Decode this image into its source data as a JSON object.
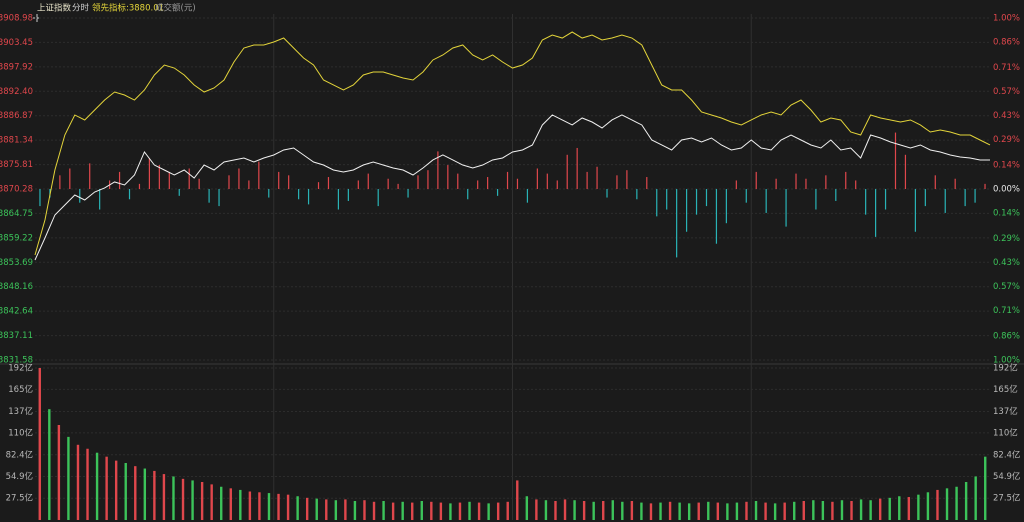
{
  "chart_data": [
    {
      "type": "line",
      "header": [
        "上证指数",
        "分时",
        "领先指标:3880.01",
        "成交额(元)"
      ],
      "header_colors": [
        "#e6e2c8",
        "#d0d0d0",
        "#e3d43a",
        "#9a9a9a"
      ],
      "ylim": [
        3831.58,
        3908.98
      ],
      "yticks": [
        3908.98,
        3903.45,
        3897.92,
        {
          "value": 3892.4,
          "label": "3892.40"
        },
        3886.87,
        3881.34,
        3875.81,
        3870.28,
        3864.75,
        3859.22,
        3853.69,
        3848.16,
        3842.64,
        3837.11,
        3831.58
      ],
      "y2lim": [
        -1.0,
        1.0
      ],
      "y2ticks": [
        {
          "value": 1.0,
          "label": "1.00%"
        },
        {
          "value": 0.86,
          "label": "0.86%"
        },
        {
          "value": 0.71,
          "label": "0.71%"
        },
        {
          "value": 0.57,
          "label": "0.57%"
        },
        {
          "value": 0.43,
          "label": "0.43%"
        },
        {
          "value": 0.29,
          "label": "0.29%"
        },
        {
          "value": 0.14,
          "label": "0.14%"
        },
        {
          "value": 0.0,
          "label": "0.00%"
        },
        {
          "value": -0.14,
          "label": "0.14%"
        },
        {
          "value": -0.29,
          "label": "0.29%"
        },
        {
          "value": -0.43,
          "label": "0.43%"
        },
        {
          "value": -0.57,
          "label": "0.57%"
        },
        {
          "value": -0.71,
          "label": "0.71%"
        },
        {
          "value": -0.86,
          "label": "0.86%"
        },
        {
          "value": -1.0,
          "label": "1.00%"
        }
      ],
      "up_color": "#e0474c",
      "down_color": "#3cc35a",
      "flat_color": "#e8e8e8",
      "bar_down_color": "#29b3b6",
      "grid": true,
      "series": [
        {
          "color": "#f0f0f0",
          "values": [
            3854.21,
            3859.19,
            3864.4,
            3866.66,
            3868.92,
            3867.79,
            3869.6,
            3870.51,
            3871.87,
            3871.19,
            3873.45,
            3878.66,
            3875.71,
            3874.58,
            3873.45,
            3874.58,
            3872.77,
            3875.71,
            3874.58,
            3876.39,
            3876.85,
            3877.3,
            3876.39,
            3877.3,
            3877.98,
            3879.11,
            3879.56,
            3877.98,
            3876.39,
            3875.71,
            3874.58,
            3874.13,
            3874.58,
            3875.71,
            3876.39,
            3875.71,
            3875.03,
            3874.58,
            3873.45,
            3875.03,
            3876.85,
            3877.98,
            3876.85,
            3875.71,
            3875.03,
            3875.71,
            3876.85,
            3877.3,
            3878.66,
            3879.11,
            3880.24,
            3884.77,
            3887.03,
            3885.9,
            3884.77,
            3886.35,
            3885.44,
            3884.09,
            3885.9,
            3887.03,
            3885.9,
            3884.77,
            3881.37,
            3880.24,
            3879.11,
            3881.37,
            3881.82,
            3880.92,
            3881.82,
            3880.24,
            3879.11,
            3879.56,
            3881.37,
            3879.56,
            3879.11,
            3881.37,
            3882.5,
            3881.37,
            3880.24,
            3879.56,
            3881.37,
            3879.11,
            3879.56,
            3877.3,
            3882.5,
            3881.82,
            3880.92,
            3880.24,
            3879.56,
            3880.24,
            3879.11,
            3878.66,
            3877.98,
            3877.52,
            3877.3,
            3876.85,
            3876.85
          ]
        },
        {
          "color": "#e3d43a",
          "values": [
            3855.35,
            3863.27,
            3874.58,
            3882.5,
            3887.03,
            3885.9,
            3888.16,
            3890.42,
            3892.23,
            3891.55,
            3890.42,
            3892.69,
            3896.08,
            3898.34,
            3897.66,
            3896.08,
            3893.82,
            3892.23,
            3893.14,
            3894.95,
            3899.02,
            3902.19,
            3902.87,
            3902.87,
            3903.55,
            3904.45,
            3902.19,
            3899.93,
            3898.34,
            3894.95,
            3893.82,
            3892.69,
            3893.82,
            3896.08,
            3896.76,
            3896.76,
            3896.08,
            3895.4,
            3894.95,
            3896.76,
            3899.48,
            3900.61,
            3902.19,
            3902.87,
            3900.61,
            3899.48,
            3900.61,
            3899.02,
            3897.66,
            3898.34,
            3899.93,
            3904.0,
            3905.13,
            3904.45,
            3905.81,
            3904.45,
            3905.13,
            3904.0,
            3904.45,
            3905.13,
            3904.45,
            3902.87,
            3898.34,
            3893.82,
            3892.69,
            3892.69,
            3890.42,
            3887.71,
            3887.03,
            3886.35,
            3885.44,
            3884.77,
            3885.9,
            3887.03,
            3887.71,
            3887.03,
            3889.29,
            3890.42,
            3888.16,
            3885.44,
            3886.35,
            3885.9,
            3883.18,
            3882.5,
            3887.03,
            3886.35,
            3885.9,
            3885.44,
            3885.9,
            3884.77,
            3883.18,
            3883.63,
            3883.18,
            3882.5,
            3882.5,
            3881.37,
            3880.24
          ]
        },
        {
          "type": "bar",
          "axis": "y2",
          "values": [
            -0.1,
            -0.05,
            0.08,
            0.12,
            -0.08,
            0.15,
            -0.12,
            0.05,
            0.1,
            -0.06,
            0.03,
            0.18,
            0.14,
            0.1,
            -0.04,
            0.12,
            0.06,
            -0.08,
            -0.1,
            0.08,
            0.12,
            0.05,
            0.16,
            -0.05,
            0.1,
            0.08,
            -0.06,
            -0.09,
            0.04,
            0.07,
            -0.12,
            -0.07,
            0.05,
            0.09,
            -0.1,
            0.06,
            0.03,
            -0.05,
            0.08,
            0.11,
            0.22,
            0.14,
            0.09,
            -0.06,
            0.05,
            0.07,
            -0.04,
            0.1,
            0.06,
            -0.08,
            0.12,
            0.09,
            0.05,
            0.2,
            0.24,
            0.1,
            0.13,
            -0.05,
            0.08,
            0.11,
            -0.06,
            0.07,
            -0.16,
            -0.12,
            -0.4,
            -0.25,
            -0.15,
            -0.1,
            -0.32,
            -0.2,
            0.05,
            -0.08,
            0.1,
            -0.14,
            0.06,
            -0.22,
            0.09,
            0.06,
            -0.12,
            0.08,
            -0.07,
            0.1,
            0.05,
            -0.15,
            -0.28,
            -0.12,
            0.33,
            0.2,
            -0.25,
            -0.1,
            0.08,
            -0.14,
            0.06,
            -0.1,
            -0.08,
            0.03
          ]
        }
      ]
    },
    {
      "type": "bar",
      "ylim": [
        0,
        192
      ],
      "yticks": [
        {
          "value": 192,
          "label": "192亿"
        },
        {
          "value": 165,
          "label": "165亿"
        },
        {
          "value": 137,
          "label": "137亿"
        },
        {
          "value": 110,
          "label": "110亿"
        },
        {
          "value": 82.4,
          "label": "82.4亿"
        },
        {
          "value": 54.9,
          "label": "54.9亿"
        },
        {
          "value": 27.5,
          "label": "27.5亿"
        }
      ],
      "grid": true,
      "series": [
        {
          "color": "#e0474c",
          "values": [
            192,
            null,
            120,
            null,
            95,
            90,
            null,
            80,
            75,
            null,
            68,
            null,
            62,
            58,
            null,
            52,
            null,
            48,
            45,
            null,
            40,
            null,
            36,
            35,
            null,
            33,
            32,
            null,
            28,
            null,
            26,
            null,
            26,
            null,
            25,
            23,
            null,
            22,
            null,
            22,
            null,
            23,
            22,
            null,
            22,
            null,
            22,
            null,
            22,
            23,
            50,
            null,
            26,
            null,
            24,
            26,
            null,
            24,
            null,
            24,
            null,
            null,
            24,
            null,
            21,
            null,
            23,
            null,
            null,
            22,
            null,
            22,
            null,
            null,
            23,
            null,
            22,
            null,
            22,
            null,
            24,
            null,
            null,
            23,
            null,
            24,
            null,
            null,
            27,
            null,
            null,
            29,
            null,
            null,
            38,
            null,
            null,
            null,
            null,
            null
          ]
        },
        {
          "color": "#3cc35a",
          "values": [
            null,
            140,
            null,
            105,
            null,
            null,
            85,
            null,
            null,
            72,
            null,
            65,
            null,
            null,
            55,
            null,
            50,
            null,
            null,
            42,
            null,
            38,
            null,
            null,
            34,
            null,
            null,
            30,
            null,
            27,
            null,
            25,
            null,
            24,
            null,
            null,
            24,
            null,
            23,
            null,
            24,
            null,
            null,
            21,
            null,
            23,
            null,
            21,
            null,
            null,
            null,
            30,
            null,
            25,
            null,
            null,
            25,
            null,
            23,
            null,
            25,
            23,
            null,
            22,
            null,
            22,
            null,
            22,
            21,
            null,
            23,
            null,
            21,
            22,
            null,
            24,
            null,
            21,
            null,
            23,
            null,
            25,
            24,
            null,
            25,
            null,
            26,
            25,
            null,
            28,
            30,
            null,
            32,
            35,
            null,
            40,
            42,
            48,
            55,
            80
          ]
        }
      ]
    }
  ]
}
